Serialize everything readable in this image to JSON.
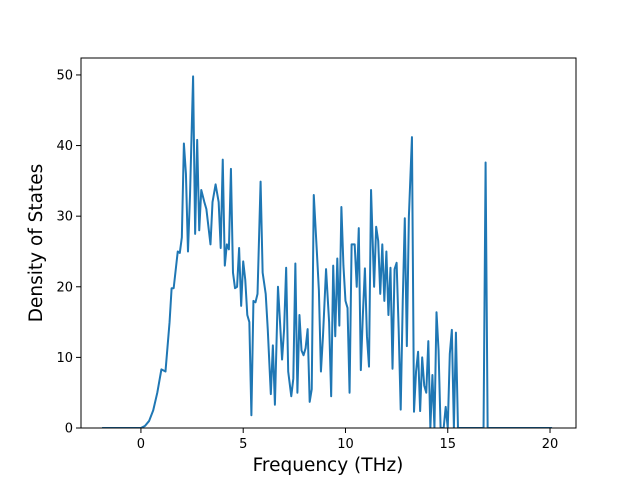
{
  "chart_data": {
    "type": "line",
    "xlabel": "Frequency (THz)",
    "ylabel": "Density of States",
    "color": "#1f77b4",
    "x": [
      -1.9,
      0,
      0.2,
      0.4,
      0.6,
      0.8,
      1.0,
      1.2,
      1.4,
      1.5,
      1.6,
      1.8,
      1.9,
      2.0,
      2.1,
      2.2,
      2.3,
      2.4,
      2.55,
      2.65,
      2.75,
      2.85,
      2.95,
      3.1,
      3.2,
      3.4,
      3.5,
      3.65,
      3.8,
      3.9,
      4.0,
      4.1,
      4.2,
      4.3,
      4.4,
      4.5,
      4.6,
      4.7,
      4.8,
      4.9,
      5.0,
      5.1,
      5.2,
      5.3,
      5.4,
      5.5,
      5.6,
      5.7,
      5.85,
      5.95,
      6.1,
      6.2,
      6.35,
      6.45,
      6.55,
      6.7,
      6.8,
      6.9,
      7.0,
      7.1,
      7.2,
      7.35,
      7.45,
      7.55,
      7.65,
      7.75,
      7.85,
      7.95,
      8.05,
      8.15,
      8.25,
      8.35,
      8.45,
      8.6,
      8.7,
      8.8,
      8.9,
      9.05,
      9.2,
      9.3,
      9.4,
      9.5,
      9.6,
      9.7,
      9.8,
      9.9,
      10.0,
      10.1,
      10.2,
      10.3,
      10.45,
      10.55,
      10.65,
      10.75,
      10.85,
      10.95,
      11.05,
      11.15,
      11.25,
      11.4,
      11.5,
      11.6,
      11.7,
      11.8,
      11.9,
      12.0,
      12.1,
      12.2,
      12.3,
      12.4,
      12.5,
      12.6,
      12.7,
      12.8,
      12.9,
      13.0,
      13.1,
      13.25,
      13.35,
      13.45,
      13.55,
      13.65,
      13.75,
      13.85,
      13.95,
      14.05,
      14.15,
      14.25,
      14.35,
      14.45,
      14.55,
      14.65,
      14.8,
      14.9,
      15.0,
      15.1,
      15.2,
      15.3,
      15.4,
      15.5,
      15.6,
      16.75,
      16.85,
      16.95,
      20.1
    ],
    "values": [
      0,
      0,
      0.3,
      1,
      2.5,
      5,
      8.3,
      8,
      15,
      19.8,
      19.8,
      25,
      24.8,
      27,
      40.3,
      36,
      25,
      33,
      49.8,
      27.5,
      40.8,
      28,
      33.7,
      32,
      31,
      26,
      32,
      34.5,
      32,
      25.5,
      38,
      23,
      26,
      25.3,
      36.7,
      22,
      19.8,
      20,
      25.5,
      17.3,
      23.6,
      21,
      16,
      15,
      1.8,
      18,
      17.8,
      19,
      34.9,
      22,
      19,
      14,
      4.8,
      11.7,
      3.3,
      20,
      15,
      9.7,
      14,
      22.7,
      8,
      4.5,
      7,
      23.3,
      5,
      16,
      11,
      10.3,
      11.3,
      14,
      3.7,
      5.5,
      33,
      25,
      19.5,
      8,
      13,
      22.5,
      15,
      4.5,
      23,
      13,
      24,
      14.5,
      31.3,
      23,
      18,
      17,
      5,
      26,
      26,
      20,
      28.3,
      8.2,
      16,
      22.6,
      13,
      8.7,
      33.7,
      20,
      28.5,
      26.5,
      19,
      26,
      18,
      25,
      16,
      22.7,
      8.4,
      22.5,
      23.4,
      14,
      2.6,
      18,
      29.7,
      11.6,
      30,
      41.2,
      2.3,
      8,
      10.8,
      2.4,
      10,
      6,
      5,
      12.3,
      0,
      7.5,
      0,
      16.4,
      11,
      0,
      0,
      3,
      0,
      10.5,
      13.9,
      0,
      13.5,
      0,
      0,
      0,
      37.6,
      0,
      0
    ],
    "xlim": [
      -2.93,
      21.27
    ],
    "xticks": [
      0,
      5,
      10,
      15,
      20
    ],
    "ylim": [
      0,
      52.4
    ],
    "yticks": [
      0,
      10,
      20,
      30,
      40,
      50
    ]
  }
}
